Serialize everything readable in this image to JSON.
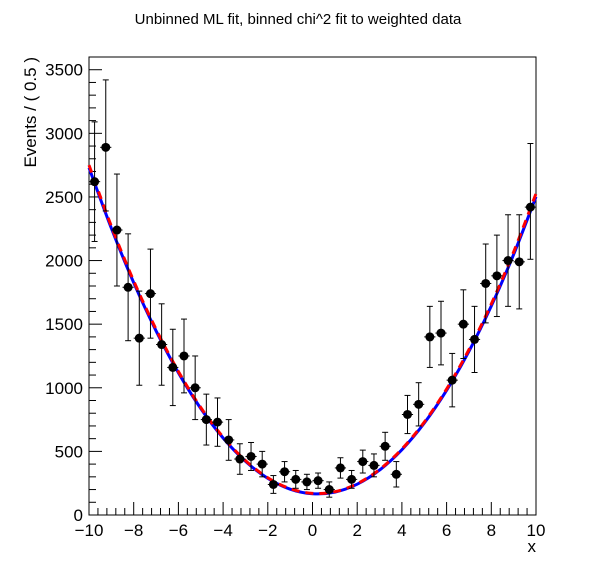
{
  "chart_data": {
    "type": "scatter",
    "title": "Unbinned ML fit, binned chi^2 fit to weighted data",
    "xlabel": "x",
    "ylabel": "Events / ( 0.5 )",
    "xlim": [
      -10,
      10
    ],
    "ylim": [
      0,
      3600
    ],
    "x_ticks": [
      -10,
      -8,
      -6,
      -4,
      -2,
      0,
      2,
      4,
      6,
      8,
      10
    ],
    "x_tick_labels": [
      "−10",
      "−8",
      "−6",
      "−4",
      "−2",
      "0",
      "2",
      "4",
      "6",
      "8",
      "10"
    ],
    "y_ticks": [
      0,
      500,
      1000,
      1500,
      2000,
      2500,
      3000,
      3500
    ],
    "y_tick_labels": [
      "0",
      "500",
      "1000",
      "1500",
      "2000",
      "2500",
      "3000",
      "3500"
    ],
    "grid": false,
    "bin_width": 0.5,
    "data_points": {
      "color": "#000000",
      "x": [
        -9.75,
        -9.25,
        -8.75,
        -8.25,
        -7.75,
        -7.25,
        -6.75,
        -6.25,
        -5.75,
        -5.25,
        -4.75,
        -4.25,
        -3.75,
        -3.25,
        -2.75,
        -2.25,
        -1.75,
        -1.25,
        -0.75,
        -0.25,
        0.25,
        0.75,
        1.25,
        1.75,
        2.25,
        2.75,
        3.25,
        3.75,
        4.25,
        4.75,
        5.25,
        5.75,
        6.25,
        6.75,
        7.25,
        7.75,
        8.25,
        8.75,
        9.25,
        9.75
      ],
      "y": [
        2620,
        2890,
        2240,
        1790,
        1390,
        1740,
        1340,
        1160,
        1250,
        1000,
        750,
        730,
        590,
        440,
        460,
        400,
        240,
        340,
        280,
        260,
        270,
        200,
        370,
        280,
        420,
        390,
        540,
        320,
        790,
        870,
        1400,
        1430,
        1060,
        1500,
        1380,
        1820,
        1880,
        2000,
        1990,
        2420
      ],
      "yerr_low": [
        470,
        500,
        440,
        420,
        370,
        350,
        320,
        300,
        290,
        250,
        200,
        190,
        160,
        120,
        110,
        100,
        70,
        80,
        70,
        60,
        60,
        60,
        80,
        70,
        90,
        90,
        110,
        100,
        150,
        170,
        240,
        250,
        210,
        270,
        260,
        310,
        320,
        360,
        370,
        410
      ],
      "yerr_high": [
        470,
        530,
        440,
        420,
        370,
        350,
        320,
        300,
        290,
        250,
        200,
        190,
        160,
        120,
        110,
        100,
        70,
        80,
        70,
        60,
        60,
        60,
        80,
        70,
        90,
        90,
        110,
        100,
        150,
        170,
        240,
        250,
        210,
        270,
        260,
        310,
        320,
        360,
        370,
        500
      ]
    },
    "series": [
      {
        "color": "#0000ff",
        "style": "solid",
        "x": [
          -10,
          -9,
          -8,
          -7,
          -6,
          -5,
          -4,
          -3,
          -2,
          -1,
          0,
          1,
          2,
          3,
          4,
          5,
          6,
          7,
          8,
          9,
          10
        ],
        "y": [
          2730,
          2254,
          1826,
          1448,
          1118,
          837,
          605,
          422,
          288,
          203,
          167,
          180,
          242,
          353,
          513,
          722,
          980,
          1287,
          1643,
          2048,
          2502
        ]
      },
      {
        "color": "#ff0000",
        "style": "dashed",
        "x": [
          -10,
          -9,
          -8,
          -7,
          -6,
          -5,
          -4,
          -3,
          -2,
          -1,
          0,
          1,
          2,
          3,
          4,
          5,
          6,
          7,
          8,
          9,
          10
        ],
        "y": [
          2750,
          2270,
          1840,
          1460,
          1128,
          845,
          612,
          428,
          293,
          207,
          170,
          183,
          246,
          358,
          519,
          730,
          990,
          1300,
          1659,
          2068,
          2526
        ]
      }
    ]
  }
}
